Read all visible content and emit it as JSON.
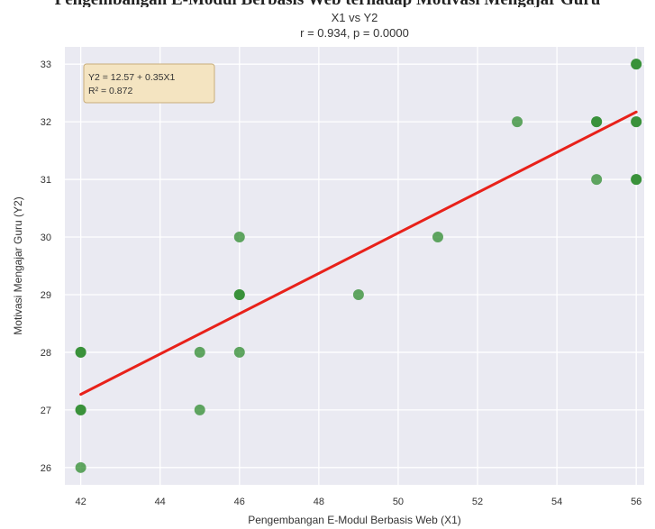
{
  "top_caption_fragment": "Pengembangan E-Modul Berbasis Web terhadap Motivasi Mengajar Guru",
  "chart_data": {
    "type": "scatter",
    "title": "X1 vs Y2",
    "subtitle": "r = 0.934, p = 0.0000",
    "xlabel": "Pengembangan E-Modul Berbasis Web (X1)",
    "ylabel": "Motivasi Mengajar Guru (Y2)",
    "xlim": [
      41.6,
      56.2
    ],
    "ylim": [
      25.7,
      33.3
    ],
    "xticks": [
      "42",
      "44",
      "46",
      "48",
      "50",
      "52",
      "54",
      "56"
    ],
    "yticks": [
      "26",
      "27",
      "28",
      "29",
      "30",
      "31",
      "32",
      "33"
    ],
    "grid": true,
    "points": [
      {
        "x": 42,
        "y": 28
      },
      {
        "x": 42,
        "y": 28
      },
      {
        "x": 42,
        "y": 27
      },
      {
        "x": 42,
        "y": 27
      },
      {
        "x": 42,
        "y": 26
      },
      {
        "x": 45,
        "y": 28
      },
      {
        "x": 45,
        "y": 27
      },
      {
        "x": 46,
        "y": 30
      },
      {
        "x": 46,
        "y": 29
      },
      {
        "x": 46,
        "y": 29
      },
      {
        "x": 46,
        "y": 28
      },
      {
        "x": 49,
        "y": 29
      },
      {
        "x": 51,
        "y": 30
      },
      {
        "x": 53,
        "y": 32
      },
      {
        "x": 55,
        "y": 32
      },
      {
        "x": 55,
        "y": 32
      },
      {
        "x": 55,
        "y": 31
      },
      {
        "x": 56,
        "y": 33
      },
      {
        "x": 56,
        "y": 33
      },
      {
        "x": 56,
        "y": 32
      },
      {
        "x": 56,
        "y": 32
      },
      {
        "x": 56,
        "y": 31
      },
      {
        "x": 56,
        "y": 31
      }
    ],
    "point_color": "#2e8b2e",
    "regression": {
      "intercept": 12.57,
      "slope": 0.35,
      "x_range": [
        42,
        56
      ],
      "color": "#e8211a",
      "equation": "Y2 = 12.57 + 0.35X1",
      "r_squared": "R² = 0.872"
    },
    "annotation_box": {
      "fill": "#f4e4c1",
      "border": "#c9ad7a"
    },
    "plot_background": "#eaeaf2"
  }
}
